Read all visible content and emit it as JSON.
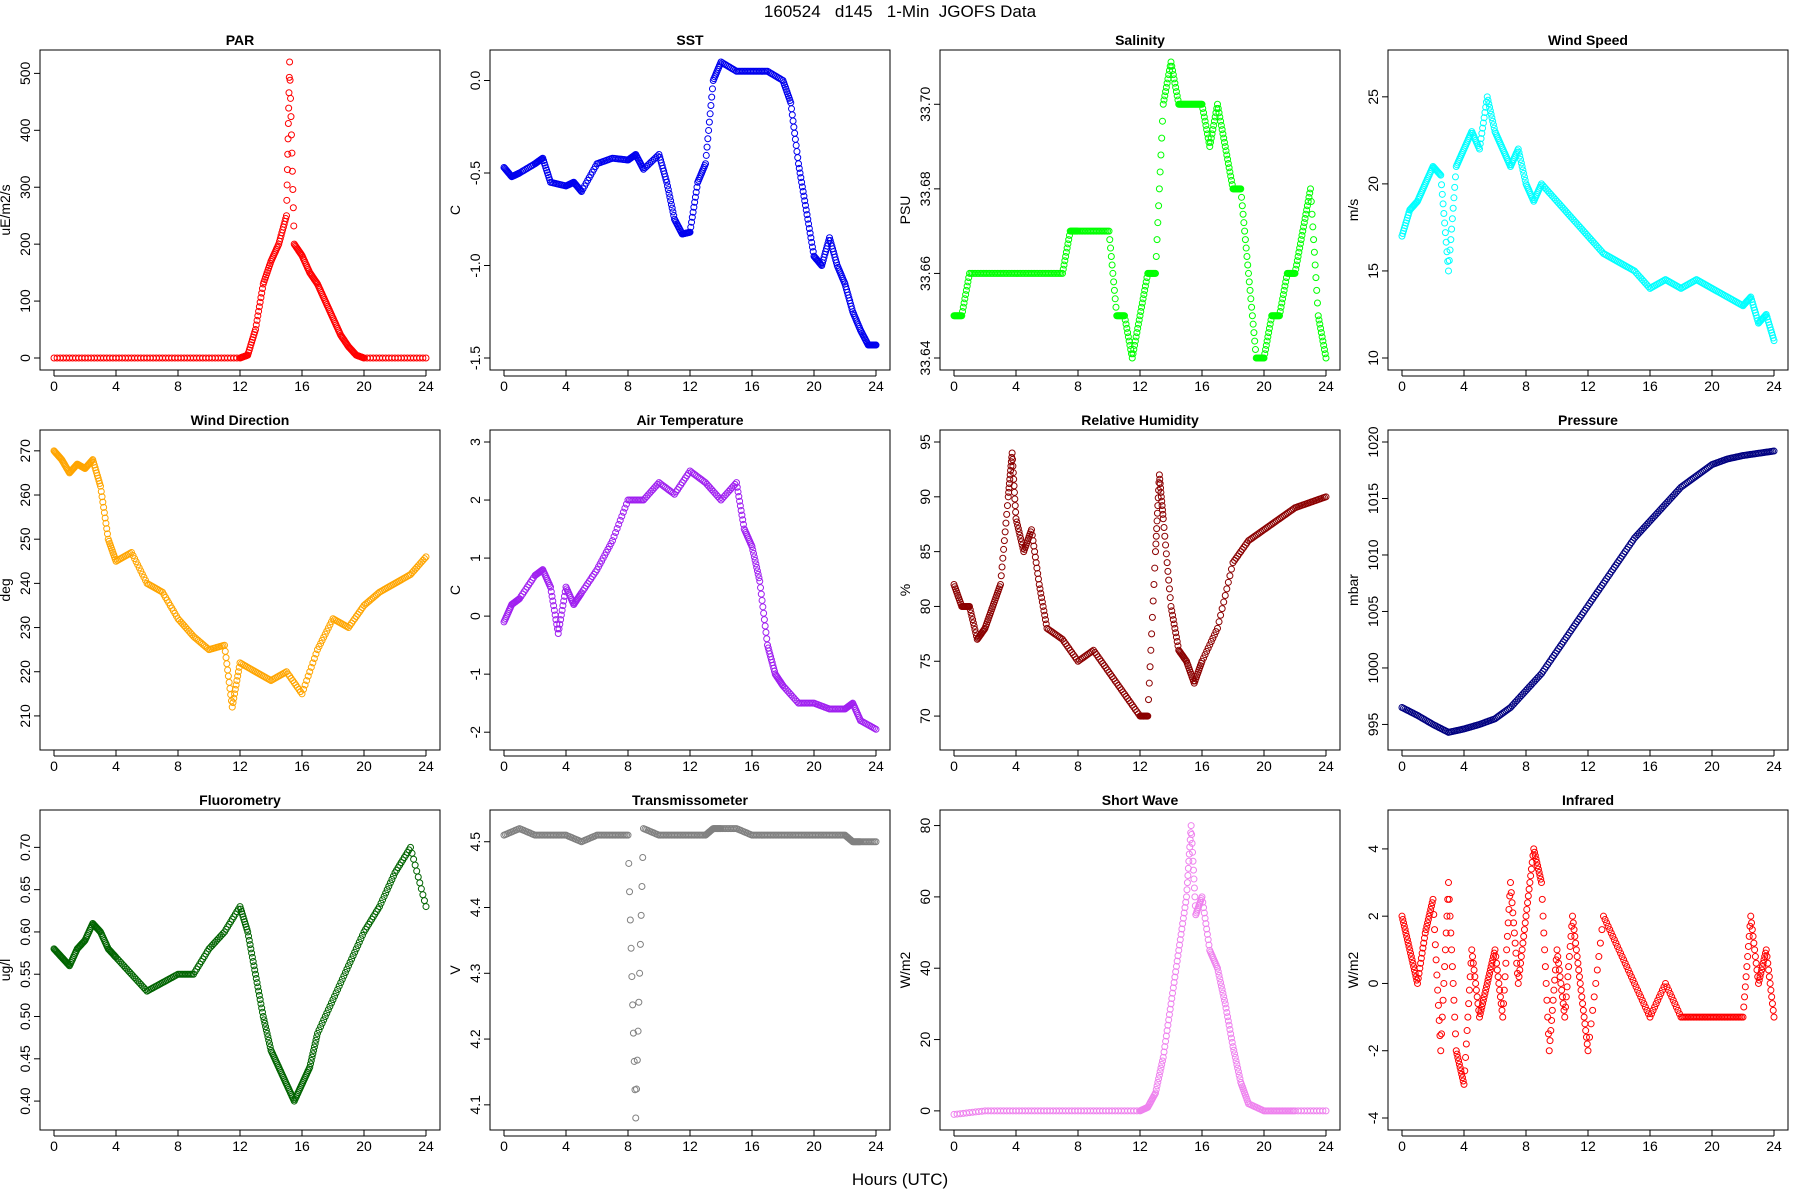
{
  "figure": {
    "title": "160524   d145   1-Min  JGOFS Data",
    "xlabel": "Hours (UTC)"
  },
  "chart_data": [
    {
      "type": "scatter",
      "title": "PAR",
      "ylabel": "uE/m2/s",
      "color": "#ff0000",
      "xlim": [
        0,
        24
      ],
      "xticks": [
        "0",
        "4",
        "8",
        "12",
        "16",
        "20",
        "24"
      ],
      "ylim": [
        0,
        520
      ],
      "yticks": [
        "0",
        "100",
        "200",
        "300",
        "400",
        "500"
      ],
      "x": [
        0,
        2,
        4,
        6,
        8,
        10,
        12,
        12.5,
        13,
        13.5,
        14,
        14.5,
        15,
        15.2,
        15.5,
        16,
        16.5,
        17,
        17.5,
        18,
        18.5,
        19,
        19.5,
        20,
        22,
        24
      ],
      "y": [
        0,
        0,
        0,
        0,
        0,
        0,
        0,
        5,
        50,
        130,
        170,
        200,
        250,
        520,
        200,
        180,
        150,
        130,
        100,
        70,
        40,
        20,
        5,
        0,
        0,
        0
      ]
    },
    {
      "type": "scatter",
      "title": "SST",
      "ylabel": "C",
      "color": "#0000ee",
      "xlim": [
        0,
        24
      ],
      "xticks": [
        "0",
        "4",
        "8",
        "12",
        "16",
        "20",
        "24"
      ],
      "ylim": [
        -1.5,
        0.1
      ],
      "yticks": [
        "-1.5",
        "-1.0",
        "-0.5",
        "0.0"
      ],
      "x": [
        0,
        0.5,
        1,
        2,
        2.5,
        3,
        4,
        4.5,
        5,
        6,
        7,
        8,
        8.5,
        9,
        10,
        10.5,
        11,
        11.5,
        12,
        12.5,
        13,
        13.5,
        14,
        15,
        16,
        17,
        18,
        18.5,
        19,
        19.5,
        20,
        20.5,
        21,
        21.5,
        22,
        22.5,
        23,
        23.5,
        24
      ],
      "y": [
        -0.47,
        -0.52,
        -0.5,
        -0.45,
        -0.42,
        -0.55,
        -0.57,
        -0.55,
        -0.6,
        -0.45,
        -0.42,
        -0.43,
        -0.4,
        -0.48,
        -0.4,
        -0.55,
        -0.75,
        -0.83,
        -0.82,
        -0.55,
        -0.45,
        0.0,
        0.1,
        0.05,
        0.05,
        0.05,
        0.0,
        -0.12,
        -0.45,
        -0.7,
        -0.95,
        -1.0,
        -0.85,
        -1.0,
        -1.1,
        -1.25,
        -1.35,
        -1.43,
        -1.43
      ]
    },
    {
      "type": "scatter",
      "title": "Salinity",
      "ylabel": "PSU",
      "color": "#00ff00",
      "xlim": [
        0,
        24
      ],
      "xticks": [
        "0",
        "4",
        "8",
        "12",
        "16",
        "20",
        "24"
      ],
      "ylim": [
        33.64,
        33.71
      ],
      "yticks": [
        "33.64",
        "33.66",
        "33.68",
        "33.70"
      ],
      "x": [
        0,
        0.5,
        1,
        2,
        3,
        4,
        5,
        6,
        7,
        7.5,
        8,
        9,
        10,
        10.5,
        11,
        11.5,
        12,
        12.5,
        13,
        13.5,
        14,
        14.5,
        15,
        15.5,
        16,
        16.5,
        17,
        17.5,
        18,
        18.5,
        19,
        19.5,
        20,
        20.5,
        21,
        21.5,
        22,
        22.5,
        23,
        23.5,
        24
      ],
      "y": [
        33.65,
        33.65,
        33.66,
        33.66,
        33.66,
        33.66,
        33.66,
        33.66,
        33.66,
        33.67,
        33.67,
        33.67,
        33.67,
        33.65,
        33.65,
        33.64,
        33.65,
        33.66,
        33.66,
        33.7,
        33.71,
        33.7,
        33.7,
        33.7,
        33.7,
        33.69,
        33.7,
        33.69,
        33.68,
        33.68,
        33.66,
        33.64,
        33.64,
        33.65,
        33.65,
        33.66,
        33.66,
        33.67,
        33.68,
        33.65,
        33.64
      ]
    },
    {
      "type": "scatter",
      "title": "Wind Speed",
      "ylabel": "m/s",
      "color": "#00ffff",
      "xlim": [
        0,
        24
      ],
      "xticks": [
        "0",
        "4",
        "8",
        "12",
        "16",
        "20",
        "24"
      ],
      "ylim": [
        10,
        27
      ],
      "yticks": [
        "10",
        "15",
        "20",
        "25"
      ],
      "x": [
        0,
        0.5,
        1,
        1.5,
        2,
        2.5,
        3,
        3.5,
        4,
        4.5,
        5,
        5.5,
        6,
        6.5,
        7,
        7.5,
        8,
        8.5,
        9,
        10,
        11,
        12,
        13,
        14,
        15,
        16,
        17,
        18,
        19,
        20,
        21,
        22,
        22.5,
        23,
        23.5,
        24
      ],
      "y": [
        17,
        18.5,
        19,
        20,
        21,
        20.5,
        15,
        21,
        22,
        23,
        22,
        25,
        23,
        22,
        21,
        22,
        20,
        19,
        20,
        19,
        18,
        17,
        16,
        15.5,
        15,
        14,
        14.5,
        14,
        14.5,
        14,
        13.5,
        13,
        13.5,
        12,
        12.5,
        11
      ]
    },
    {
      "type": "scatter",
      "title": "Wind Direction",
      "ylabel": "deg",
      "color": "#ffa500",
      "xlim": [
        0,
        24
      ],
      "xticks": [
        "0",
        "4",
        "8",
        "12",
        "16",
        "20",
        "24"
      ],
      "ylim": [
        205,
        272
      ],
      "yticks": [
        "210",
        "220",
        "230",
        "240",
        "250",
        "260",
        "270"
      ],
      "x": [
        0,
        0.5,
        1,
        1.5,
        2,
        2.5,
        3,
        3.5,
        4,
        5,
        6,
        7,
        8,
        9,
        10,
        11,
        11.5,
        12,
        13,
        14,
        15,
        16,
        17,
        18,
        19,
        20,
        21,
        22,
        23,
        24
      ],
      "y": [
        270,
        268,
        265,
        267,
        266,
        268,
        262,
        250,
        245,
        247,
        240,
        238,
        232,
        228,
        225,
        226,
        212,
        222,
        220,
        218,
        220,
        215,
        225,
        232,
        230,
        235,
        238,
        240,
        242,
        246
      ]
    },
    {
      "type": "scatter",
      "title": "Air Temperature",
      "ylabel": "C",
      "color": "#a020f0",
      "xlim": [
        0,
        24
      ],
      "xticks": [
        "0",
        "4",
        "8",
        "12",
        "16",
        "20",
        "24"
      ],
      "ylim": [
        -2.1,
        3
      ],
      "yticks": [
        "-2",
        "-1",
        "0",
        "1",
        "2",
        "3"
      ],
      "x": [
        0,
        0.5,
        1,
        2,
        2.5,
        3,
        3.5,
        4,
        4.5,
        5,
        6,
        7,
        8,
        9,
        10,
        11,
        12,
        13,
        14,
        15,
        15.5,
        16,
        16.5,
        17,
        17.5,
        18,
        19,
        20,
        21,
        22,
        22.5,
        23,
        24
      ],
      "y": [
        -0.1,
        0.2,
        0.3,
        0.7,
        0.8,
        0.5,
        -0.3,
        0.5,
        0.2,
        0.4,
        0.8,
        1.3,
        2.0,
        2.0,
        2.3,
        2.1,
        2.5,
        2.3,
        2.0,
        2.3,
        1.5,
        1.2,
        0.6,
        -0.5,
        -1.0,
        -1.2,
        -1.5,
        -1.5,
        -1.6,
        -1.6,
        -1.5,
        -1.8,
        -1.95
      ]
    },
    {
      "type": "scatter",
      "title": "Relative Humidity",
      "ylabel": "%",
      "color": "#8b0000",
      "xlim": [
        0,
        24
      ],
      "xticks": [
        "0",
        "4",
        "8",
        "12",
        "16",
        "20",
        "24"
      ],
      "ylim": [
        68,
        95
      ],
      "yticks": [
        "70",
        "75",
        "80",
        "85",
        "90",
        "95"
      ],
      "x": [
        0,
        0.5,
        1,
        1.5,
        2,
        2.5,
        3,
        3.5,
        3.75,
        4,
        4.5,
        5,
        5.5,
        6,
        7,
        8,
        9,
        10,
        11,
        12,
        12.5,
        13,
        13.25,
        13.5,
        14,
        14.5,
        15,
        15.5,
        16,
        17,
        18,
        19,
        20,
        21,
        22,
        23,
        24
      ],
      "y": [
        82,
        80,
        80,
        77,
        78,
        80,
        82,
        90,
        94,
        88,
        85,
        87,
        82,
        78,
        77,
        75,
        76,
        74,
        72,
        70,
        70,
        85,
        92,
        88,
        80,
        76,
        75,
        73,
        75,
        78,
        84,
        86,
        87,
        88,
        89,
        89.5,
        90
      ]
    },
    {
      "type": "scatter",
      "title": "Pressure",
      "ylabel": "mbar",
      "color": "#000080",
      "xlim": [
        0,
        24
      ],
      "xticks": [
        "0",
        "4",
        "8",
        "12",
        "16",
        "20",
        "24"
      ],
      "ylim": [
        993.8,
        1020
      ],
      "yticks": [
        "995",
        "1000",
        "1005",
        "1010",
        "1015",
        "1020"
      ],
      "x": [
        0,
        1,
        2,
        3,
        4,
        5,
        6,
        7,
        8,
        9,
        10,
        11,
        12,
        13,
        14,
        15,
        16,
        17,
        18,
        19,
        20,
        21,
        22,
        23,
        24
      ],
      "y": [
        996.5,
        995.8,
        995,
        994.3,
        994.6,
        995,
        995.5,
        996.5,
        998,
        999.5,
        1001.5,
        1003.5,
        1005.5,
        1007.5,
        1009.5,
        1011.5,
        1013,
        1014.5,
        1016,
        1017,
        1018,
        1018.5,
        1018.8,
        1019,
        1019.2
      ]
    },
    {
      "type": "scatter",
      "title": "Fluorometry",
      "ylabel": "ug/l",
      "color": "#006400",
      "xlim": [
        0,
        24
      ],
      "xticks": [
        "0",
        "4",
        "8",
        "12",
        "16",
        "20",
        "24"
      ],
      "ylim": [
        0.38,
        0.73
      ],
      "yticks": [
        "0.40",
        "0.45",
        "0.50",
        "0.55",
        "0.60",
        "0.65",
        "0.70"
      ],
      "x": [
        0,
        0.5,
        1,
        1.5,
        2,
        2.5,
        3,
        3.5,
        4,
        5,
        6,
        7,
        8,
        9,
        10,
        11,
        12,
        12.5,
        13,
        13.5,
        14,
        14.5,
        15,
        15.5,
        16,
        16.5,
        17,
        18,
        19,
        20,
        21,
        22,
        23,
        24
      ],
      "y": [
        0.58,
        0.57,
        0.56,
        0.58,
        0.59,
        0.61,
        0.6,
        0.58,
        0.57,
        0.55,
        0.53,
        0.54,
        0.55,
        0.55,
        0.58,
        0.6,
        0.63,
        0.6,
        0.55,
        0.5,
        0.46,
        0.44,
        0.42,
        0.4,
        0.42,
        0.44,
        0.48,
        0.52,
        0.56,
        0.6,
        0.63,
        0.67,
        0.7,
        0.63
      ]
    },
    {
      "type": "scatter",
      "title": "Transmissometer",
      "ylabel": "V",
      "color": "#808080",
      "xlim": [
        0,
        24
      ],
      "xticks": [
        "0",
        "4",
        "8",
        "12",
        "16",
        "20",
        "24"
      ],
      "ylim": [
        4.08,
        4.53
      ],
      "yticks": [
        "4.1",
        "4.2",
        "4.3",
        "4.4",
        "4.5"
      ],
      "x": [
        0,
        1,
        2,
        3,
        4,
        5,
        6,
        7,
        8,
        8.5,
        9,
        10,
        11,
        12,
        13,
        13.5,
        14,
        15,
        16,
        17,
        18,
        19,
        20,
        21,
        22,
        22.5,
        23,
        24
      ],
      "y": [
        4.51,
        4.52,
        4.51,
        4.51,
        4.51,
        4.5,
        4.51,
        4.51,
        4.51,
        4.08,
        4.52,
        4.51,
        4.51,
        4.51,
        4.51,
        4.52,
        4.52,
        4.52,
        4.51,
        4.51,
        4.51,
        4.51,
        4.51,
        4.51,
        4.51,
        4.5,
        4.5,
        4.5
      ]
    },
    {
      "type": "scatter",
      "title": "Short Wave",
      "ylabel": "W/m2",
      "color": "#ee82ee",
      "xlim": [
        0,
        24
      ],
      "xticks": [
        "0",
        "4",
        "8",
        "12",
        "16",
        "20",
        "24"
      ],
      "ylim": [
        -2,
        81
      ],
      "yticks": [
        "0",
        "20",
        "40",
        "60",
        "80"
      ],
      "x": [
        0,
        2,
        4,
        6,
        8,
        10,
        12,
        12.5,
        13,
        13.5,
        14,
        14.5,
        15,
        15.3,
        15.6,
        16,
        16.5,
        17,
        17.5,
        18,
        18.5,
        19,
        20,
        21,
        22,
        24
      ],
      "y": [
        -1,
        0,
        0,
        0,
        0,
        0,
        0,
        1,
        5,
        15,
        30,
        45,
        60,
        80,
        55,
        60,
        45,
        40,
        30,
        18,
        8,
        2,
        0,
        0,
        0,
        0
      ]
    },
    {
      "type": "scatter",
      "title": "Infrared",
      "ylabel": "W/m2",
      "color": "#ff0000",
      "xlim": [
        0,
        24
      ],
      "xticks": [
        "0",
        "4",
        "8",
        "12",
        "16",
        "20",
        "24"
      ],
      "ylim": [
        -4,
        4.8
      ],
      "yticks": [
        "-4",
        "-2",
        "0",
        "2",
        "4"
      ],
      "x": [
        0,
        0.5,
        1,
        1.5,
        2,
        2.5,
        3,
        3.5,
        4,
        4.5,
        5,
        5.5,
        6,
        6.5,
        7,
        7.5,
        8,
        8.5,
        9,
        9.5,
        10,
        10.5,
        11,
        11.5,
        12,
        13,
        14,
        15,
        16,
        17,
        18,
        19,
        20,
        21,
        22,
        22.5,
        23,
        23.5,
        24
      ],
      "y": [
        2,
        1,
        0,
        1.5,
        2.5,
        -2,
        3,
        -2,
        -3,
        1,
        -1,
        0,
        1,
        -1,
        3,
        0,
        2,
        4,
        3,
        -2,
        1,
        -1,
        2,
        0,
        -2,
        2,
        1,
        0,
        -1,
        0,
        -1,
        -1,
        -1,
        -1,
        -1,
        2,
        0,
        1,
        -1
      ]
    }
  ]
}
